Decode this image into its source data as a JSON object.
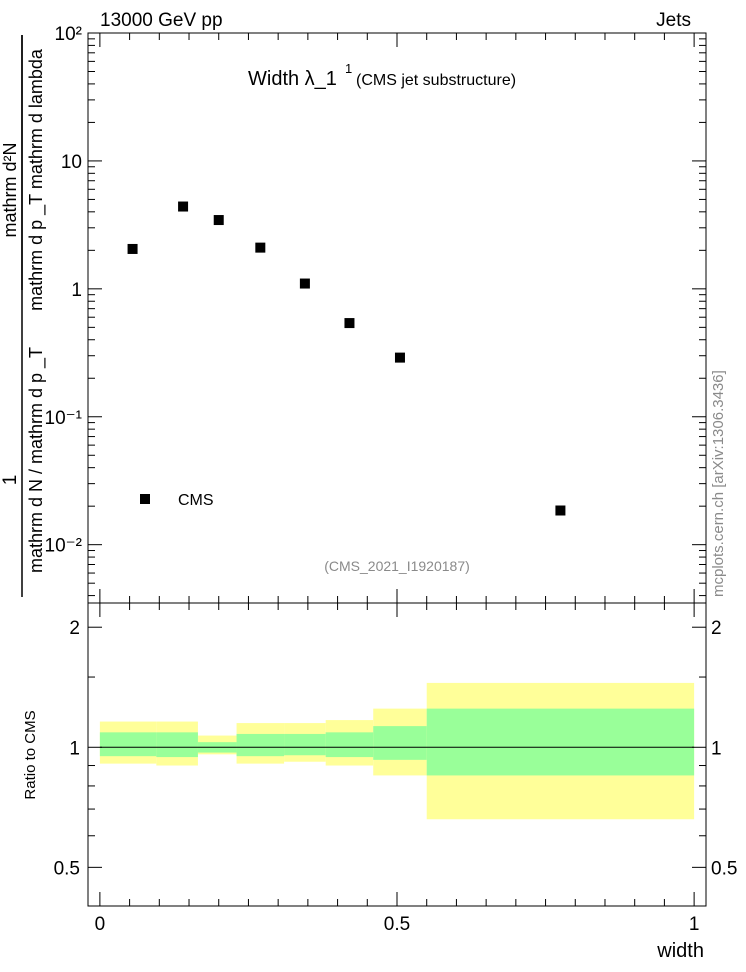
{
  "header": {
    "left": "13000 GeV pp",
    "right": "Jets"
  },
  "side_label": "mcplots.cern.ch [arXiv:1306.3436]",
  "ylabel_main": {
    "numerator": "1",
    "denominator": "mathrm d N / mathrm d p _T",
    "right_numerator": "mathrm d²N",
    "right_denominator": "mathrm d p _T mathrm d lambda"
  },
  "plot_title": {
    "main": "Width λ_1",
    "sup": "1",
    "sub": "(CMS jet substructure)"
  },
  "legend": {
    "label": "CMS"
  },
  "analysis_tag": "(CMS_2021_I1920187)",
  "ratio_panel": {
    "ylabel": "Ratio to CMS"
  },
  "xlabel": "width",
  "colors": {
    "inner_band": "#99ff99",
    "outer_band": "#ffff99",
    "ref_line": "#000000",
    "markers": "#000000"
  },
  "chart_data": [
    {
      "type": "scatter",
      "yscale": "log",
      "xlim": [
        -0.02,
        1.02
      ],
      "ylim": [
        0.0035,
        100
      ],
      "y_tick_labels": [
        "10⁻²",
        "10⁻¹",
        "1",
        "10",
        "10²"
      ],
      "y_ticks": [
        0.01,
        0.1,
        1,
        10,
        100
      ],
      "series": [
        {
          "name": "CMS",
          "x": [
            0.055,
            0.14,
            0.2,
            0.27,
            0.345,
            0.42,
            0.505,
            0.775
          ],
          "y": [
            2.05,
            4.4,
            3.45,
            2.1,
            1.1,
            0.54,
            0.29,
            0.0185
          ]
        }
      ]
    },
    {
      "type": "area",
      "xlim": [
        -0.02,
        1.02
      ],
      "ylim": [
        0.4,
        2.3
      ],
      "yscale": "log",
      "y_ticks": [
        0.5,
        1,
        2
      ],
      "y_tick_labels": [
        "0.5",
        "1",
        "2"
      ],
      "x_ticks": [
        0,
        0.5,
        1
      ],
      "x_tick_labels": [
        "0",
        "0.5",
        "1"
      ],
      "reference_line": 1,
      "bins": [
        {
          "x0": 0.0,
          "x1": 0.095,
          "inner": [
            0.95,
            1.09
          ],
          "outer": [
            0.91,
            1.16
          ]
        },
        {
          "x0": 0.095,
          "x1": 0.165,
          "inner": [
            0.945,
            1.09
          ],
          "outer": [
            0.9,
            1.16
          ]
        },
        {
          "x0": 0.165,
          "x1": 0.23,
          "inner": [
            0.97,
            1.03
          ],
          "outer": [
            0.96,
            1.07
          ]
        },
        {
          "x0": 0.23,
          "x1": 0.31,
          "inner": [
            0.95,
            1.08
          ],
          "outer": [
            0.91,
            1.15
          ]
        },
        {
          "x0": 0.31,
          "x1": 0.38,
          "inner": [
            0.955,
            1.08
          ],
          "outer": [
            0.92,
            1.15
          ]
        },
        {
          "x0": 0.38,
          "x1": 0.46,
          "inner": [
            0.945,
            1.09
          ],
          "outer": [
            0.9,
            1.17
          ]
        },
        {
          "x0": 0.46,
          "x1": 0.55,
          "inner": [
            0.93,
            1.13
          ],
          "outer": [
            0.85,
            1.25
          ]
        },
        {
          "x0": 0.55,
          "x1": 1.0,
          "inner": [
            0.85,
            1.25
          ],
          "outer": [
            0.66,
            1.45
          ]
        }
      ]
    }
  ]
}
